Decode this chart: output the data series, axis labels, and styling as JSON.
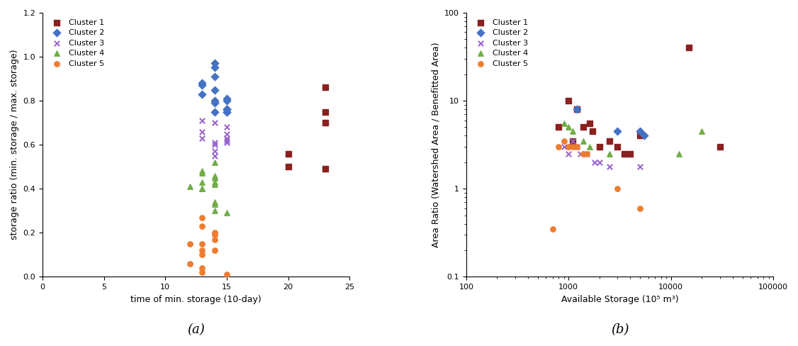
{
  "cluster1_a": {
    "x": [
      20,
      20,
      23,
      23,
      23,
      23
    ],
    "y": [
      0.56,
      0.5,
      0.86,
      0.75,
      0.7,
      0.49
    ],
    "color": "#8B2020",
    "marker": "s",
    "label": "Cluster 1"
  },
  "cluster2_a": {
    "x": [
      13,
      13,
      13,
      14,
      14,
      14,
      14,
      14,
      14,
      14,
      15,
      15,
      15,
      15,
      15,
      15,
      15
    ],
    "y": [
      0.88,
      0.87,
      0.83,
      0.97,
      0.95,
      0.91,
      0.85,
      0.8,
      0.79,
      0.75,
      0.8,
      0.81,
      0.75,
      0.76,
      0.76,
      0.76,
      0.75
    ],
    "color": "#4472C4",
    "marker": "D",
    "label": "Cluster 2"
  },
  "cluster3_a": {
    "x": [
      13,
      13,
      13,
      14,
      14,
      14,
      14,
      14,
      15,
      15,
      15,
      15,
      15
    ],
    "y": [
      0.71,
      0.66,
      0.63,
      0.7,
      0.61,
      0.6,
      0.57,
      0.55,
      0.68,
      0.65,
      0.63,
      0.62,
      0.61
    ],
    "color": "#9966CC",
    "marker": "x",
    "label": "Cluster 3"
  },
  "cluster4_a": {
    "x": [
      12,
      13,
      13,
      13,
      13,
      13,
      14,
      14,
      14,
      14,
      14,
      14,
      14,
      14,
      15
    ],
    "y": [
      0.41,
      0.48,
      0.47,
      0.43,
      0.4,
      0.4,
      0.52,
      0.46,
      0.45,
      0.43,
      0.42,
      0.34,
      0.33,
      0.3,
      0.29
    ],
    "color": "#70AD47",
    "marker": "^",
    "label": "Cluster 4"
  },
  "cluster5_a": {
    "x": [
      12,
      12,
      13,
      13,
      13,
      13,
      13,
      13,
      13,
      14,
      14,
      14,
      14,
      15
    ],
    "y": [
      0.15,
      0.06,
      0.27,
      0.23,
      0.1,
      0.04,
      0.02,
      0.15,
      0.12,
      0.2,
      0.19,
      0.17,
      0.12,
      0.01
    ],
    "color": "#ED7D31",
    "marker": "o",
    "label": "Cluster 5"
  },
  "cluster1_b": {
    "x": [
      800,
      1000,
      1100,
      1200,
      1400,
      1600,
      1700,
      2000,
      2500,
      3000,
      3500,
      4000,
      5000,
      15000,
      30000
    ],
    "y": [
      5.0,
      10.0,
      3.5,
      8.0,
      5.0,
      5.5,
      4.5,
      3.0,
      3.5,
      3.0,
      2.5,
      2.5,
      4.0,
      40.0,
      3.0
    ],
    "color": "#8B2020",
    "marker": "s",
    "label": "Cluster 1"
  },
  "cluster2_b": {
    "x": [
      1200,
      3000,
      5000,
      5500
    ],
    "y": [
      8.0,
      4.5,
      4.5,
      4.0
    ],
    "color": "#4472C4",
    "marker": "D",
    "label": "Cluster 2"
  },
  "cluster3_b": {
    "x": [
      900,
      1000,
      1100,
      1200,
      1300,
      1500,
      1800,
      2000,
      2500,
      5000
    ],
    "y": [
      3.0,
      2.5,
      3.5,
      3.0,
      2.5,
      2.5,
      2.0,
      2.0,
      1.8,
      1.8
    ],
    "color": "#9966CC",
    "marker": "x",
    "label": "Cluster 3"
  },
  "cluster4_b": {
    "x": [
      900,
      1000,
      1100,
      1400,
      1600,
      2500,
      12000,
      20000
    ],
    "y": [
      5.5,
      5.0,
      4.5,
      3.5,
      3.0,
      2.5,
      2.5,
      4.5
    ],
    "color": "#70AD47",
    "marker": "^",
    "label": "Cluster 4"
  },
  "cluster5_b": {
    "x": [
      800,
      900,
      1000,
      1100,
      1200,
      1400,
      1500,
      3000,
      5000,
      700
    ],
    "y": [
      3.0,
      3.5,
      3.0,
      3.0,
      3.0,
      2.5,
      2.5,
      1.0,
      0.6,
      0.35
    ],
    "color": "#ED7D31",
    "marker": "o",
    "label": "Cluster 5"
  },
  "title_a": "(a)",
  "title_b": "(b)",
  "xlabel_a": "time of min. storage (10-day)",
  "ylabel_a": "storage ratio (min. storage / max. storage)",
  "xlabel_b": "Available Storage (10⁵ m³)",
  "ylabel_b": "Area Ratio (Watershed Area / Benefitted Area)"
}
